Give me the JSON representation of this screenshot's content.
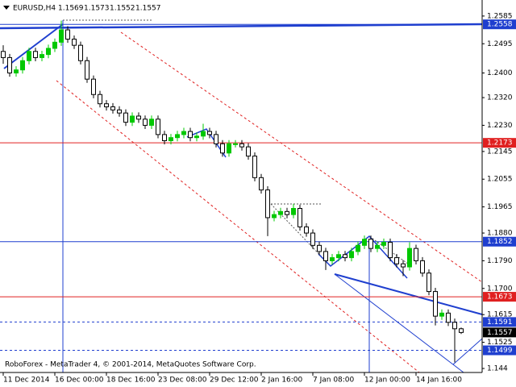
{
  "chart_data": {
    "type": "candlestick",
    "title": "EURUSD,H4",
    "footer": "RoboForex - MetaTrader 4, © 2001-2014, MetaQuotes Software Corp.",
    "categories": [
      "11 Dec 2014",
      null,
      null,
      null,
      null,
      null,
      null,
      null,
      "16 Dec 00:00",
      null,
      null,
      null,
      null,
      null,
      null,
      null,
      "18 Dec 16:00",
      null,
      null,
      null,
      null,
      null,
      null,
      null,
      "23 Dec 08:00",
      null,
      null,
      null,
      null,
      null,
      null,
      null,
      "29 Dec 12:00",
      null,
      null,
      null,
      null,
      null,
      null,
      null,
      "2 Jan 16:00",
      null,
      null,
      null,
      null,
      null,
      null,
      null,
      "7 Jan 08:00",
      null,
      null,
      null,
      null,
      null,
      null,
      null,
      "12 Jan 00:00",
      null,
      null,
      null,
      null,
      null,
      null,
      null,
      "14 Jan 16:00",
      null,
      null,
      null,
      null,
      null,
      null,
      null
    ],
    "open": [
      1.247,
      1.245,
      1.24,
      1.241,
      1.244,
      1.247,
      1.245,
      1.246,
      1.248,
      1.25,
      1.254,
      1.251,
      1.249,
      1.244,
      1.238,
      1.233,
      1.23,
      1.229,
      1.228,
      1.227,
      1.224,
      1.226,
      1.225,
      1.223,
      1.225,
      1.22,
      1.218,
      1.219,
      1.22,
      1.221,
      1.219,
      1.2195,
      1.221,
      1.22,
      1.217,
      1.214,
      1.217,
      1.217,
      1.216,
      1.213,
      1.206,
      1.202,
      1.193,
      1.194,
      1.195,
      1.194,
      1.196,
      1.19,
      1.188,
      1.184,
      1.182,
      1.179,
      1.18,
      1.181,
      1.18,
      1.182,
      1.184,
      1.186,
      1.183,
      1.184,
      1.185,
      1.18,
      1.178,
      1.177,
      1.183,
      1.179,
      1.175,
      1.169,
      1.161,
      1.162,
      1.159,
      1.1569
    ],
    "high": [
      1.249,
      1.2462,
      1.2422,
      1.2452,
      1.2482,
      1.2482,
      1.2472,
      1.2492,
      1.2512,
      1.257,
      1.2552,
      1.2522,
      1.2502,
      1.2452,
      1.2392,
      1.2342,
      1.2312,
      1.2302,
      1.2292,
      1.2282,
      1.2272,
      1.2272,
      1.2262,
      1.2262,
      1.2262,
      1.2212,
      1.2202,
      1.2212,
      1.2222,
      1.2222,
      1.2207,
      1.2235,
      1.2222,
      1.2212,
      1.2182,
      1.2182,
      1.2182,
      1.2182,
      1.2172,
      1.2142,
      1.2072,
      1.2032,
      1.1952,
      1.1962,
      1.1962,
      1.1975,
      1.1972,
      1.1912,
      1.1892,
      1.1852,
      1.1832,
      1.1812,
      1.1822,
      1.1822,
      1.1832,
      1.1852,
      1.1872,
      1.1872,
      1.1852,
      1.1862,
      1.1862,
      1.1812,
      1.1792,
      1.185,
      1.1842,
      1.1802,
      1.1762,
      1.1702,
      1.1632,
      1.1632,
      1.1602,
      1.1573
    ],
    "low": [
      1.243,
      1.2388,
      1.2388,
      1.2398,
      1.2428,
      1.2438,
      1.2438,
      1.2448,
      1.2468,
      1.2488,
      1.2498,
      1.2478,
      1.2428,
      1.2368,
      1.2318,
      1.2288,
      1.2278,
      1.2268,
      1.2258,
      1.2228,
      1.2228,
      1.2238,
      1.2218,
      1.2218,
      1.2188,
      1.2168,
      1.2168,
      1.2178,
      1.2188,
      1.2178,
      1.2178,
      1.2183,
      1.2188,
      1.2158,
      1.2128,
      1.2128,
      1.2158,
      1.2148,
      1.2118,
      1.2048,
      1.2008,
      1.187,
      1.1918,
      1.1928,
      1.1928,
      1.1928,
      1.1888,
      1.1868,
      1.1828,
      1.1808,
      1.176,
      1.1778,
      1.1788,
      1.1788,
      1.1788,
      1.1808,
      1.1828,
      1.1818,
      1.1818,
      1.1828,
      1.1788,
      1.1768,
      1.174,
      1.1758,
      1.1778,
      1.1738,
      1.1678,
      1.158,
      1.1598,
      1.1578,
      1.146,
      1.1552
    ],
    "close": [
      1.245,
      1.24,
      1.241,
      1.244,
      1.247,
      1.245,
      1.246,
      1.248,
      1.25,
      1.254,
      1.251,
      1.249,
      1.244,
      1.238,
      1.233,
      1.23,
      1.229,
      1.228,
      1.227,
      1.224,
      1.226,
      1.225,
      1.223,
      1.225,
      1.22,
      1.218,
      1.219,
      1.22,
      1.221,
      1.219,
      1.2195,
      1.221,
      1.22,
      1.217,
      1.214,
      1.217,
      1.217,
      1.216,
      1.213,
      1.206,
      1.202,
      1.193,
      1.194,
      1.195,
      1.194,
      1.196,
      1.19,
      1.188,
      1.184,
      1.182,
      1.179,
      1.18,
      1.181,
      1.18,
      1.182,
      1.184,
      1.186,
      1.183,
      1.184,
      1.185,
      1.18,
      1.178,
      1.177,
      1.183,
      1.179,
      1.175,
      1.169,
      1.161,
      1.162,
      1.159,
      1.1569,
      1.1557
    ],
    "up_color": "#00c800",
    "down_color": "#000000",
    "ylim": [
      1.1427,
      1.2624
    ],
    "yticks": [
      1.2585,
      1.2495,
      {
        "value": 1.24,
        "label": "1.2400"
      },
      {
        "value": 1.232,
        "label": "1.2320"
      },
      {
        "value": 1.223,
        "label": "1.2230"
      },
      1.2145,
      1.2055,
      1.1965,
      {
        "value": 1.188,
        "label": "1.1880"
      },
      {
        "value": 1.179,
        "label": "1.1790"
      },
      {
        "value": 1.17,
        "label": "1.1700"
      },
      1.1615,
      1.1525,
      1.144
    ],
    "levels": [
      {
        "value": 1.2558,
        "color": "#1f3fcf",
        "style": "solid"
      },
      {
        "value": 1.2173,
        "color": "#e02020",
        "style": "solid"
      },
      {
        "value": 1.1852,
        "color": "#1f3fcf",
        "style": "solid"
      },
      {
        "value": 1.1673,
        "color": "#e02020",
        "style": "solid"
      },
      {
        "value": 1.1591,
        "color": "#1f3fcf",
        "style": "dash"
      },
      {
        "value": 1.1499,
        "color": "#1f3fcf",
        "style": "dash"
      }
    ],
    "last_price": 1.1557
  }
}
